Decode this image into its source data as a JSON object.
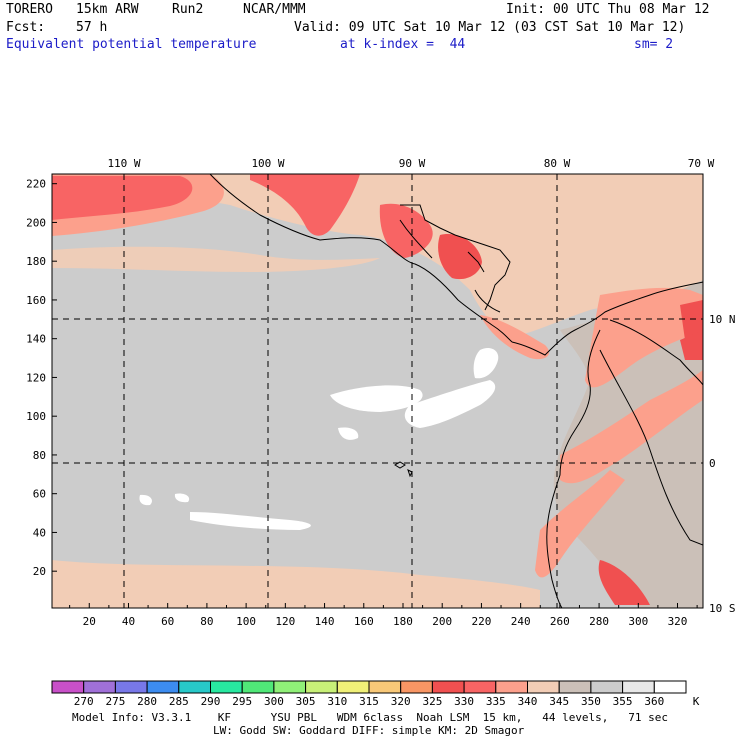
{
  "header": {
    "model": "TORERO",
    "resolution": "15km ARW",
    "run": "Run2",
    "org": "NCAR/MMM",
    "init": "Init: 00 UTC Thu 08 Mar 12",
    "fcst_label": "Fcst:",
    "fcst_value": "57 h",
    "valid": "Valid: 09 UTC Sat 10 Mar 12 (03 CST Sat 10 Mar 12)",
    "field": "Equivalent potential temperature",
    "level": "at k-index =  44",
    "smoothing": "sm= 2"
  },
  "map": {
    "lon_labels": [
      "110 W",
      "100 W",
      "90 W",
      "80 W",
      "70 W"
    ],
    "lat_labels": [
      "10 N",
      "0",
      "10 S"
    ],
    "y_ticks": [
      20,
      40,
      60,
      80,
      100,
      120,
      140,
      160,
      180,
      200,
      220
    ],
    "x_ticks": [
      20,
      40,
      60,
      80,
      100,
      120,
      140,
      160,
      180,
      200,
      220,
      240,
      260,
      280,
      300,
      320
    ],
    "grid_x_range": [
      1,
      333
    ],
    "grid_y_range": [
      1,
      225
    ]
  },
  "colorbar": {
    "levels": [
      270,
      275,
      280,
      285,
      290,
      295,
      300,
      305,
      310,
      315,
      320,
      325,
      330,
      335,
      340,
      345,
      350,
      355,
      360
    ],
    "unit": "K",
    "colors": [
      "#c850c8",
      "#a070d8",
      "#7878e8",
      "#3c8cf0",
      "#28c8c8",
      "#28e8a0",
      "#50e878",
      "#90f078",
      "#c8f078",
      "#f0f078",
      "#f8c878",
      "#f89664",
      "#f05050",
      "#f86464",
      "#fca08c",
      "#f2cdb6",
      "#cbc0b8",
      "#cccccc",
      "#e8e8e8",
      "#ffffff"
    ]
  },
  "footer": {
    "line1": "Model Info: V3.3.1    KF      YSU PBL   WDM 6class  Noah LSM  15 km,   44 levels,   71 sec",
    "line2": "LW: Godd SW: Goddard DIFF: simple KM: 2D Smagor"
  }
}
